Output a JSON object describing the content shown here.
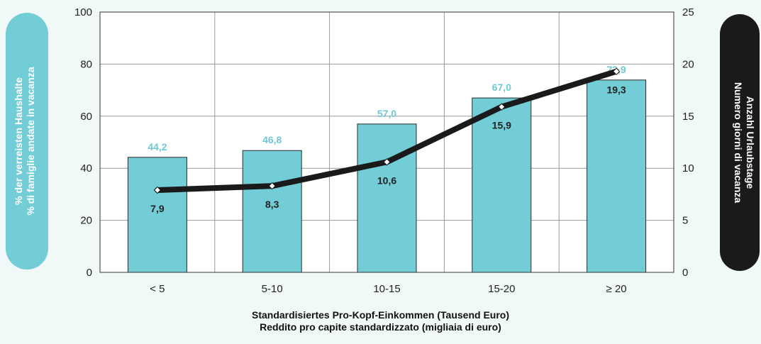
{
  "chart_data": {
    "type": "bar",
    "categories": [
      "< 5",
      "5-10",
      "10-15",
      "15-20",
      "≥ 20"
    ],
    "series": [
      {
        "type": "bar",
        "axis": "left",
        "values": [
          44.2,
          46.8,
          57.0,
          67.0,
          73.9
        ],
        "labels": [
          "44,2",
          "46,8",
          "57,0",
          "67,0",
          "73,9"
        ],
        "color": "#72cdd6"
      },
      {
        "type": "line",
        "axis": "right",
        "values": [
          7.9,
          8.3,
          10.6,
          15.9,
          19.3
        ],
        "labels": [
          "7,9",
          "8,3",
          "10,6",
          "15,9",
          "19,3"
        ],
        "color": "#1a1a1a"
      }
    ],
    "ylabel_left": [
      "% der verreisten Haushalte",
      "% di famiglie andate in vacanza"
    ],
    "ylabel_right": [
      "Anzahl Urlaubstage",
      "Numero giorni di vacanza"
    ],
    "xlabel": [
      "Standardisiertes Pro-Kopf-Einkommen (Tausend Euro)",
      "Reddito pro capite standardizzato (migliaia di euro)"
    ],
    "ylim_left": [
      0,
      100
    ],
    "yticks_left": [
      "0",
      "20",
      "40",
      "60",
      "80",
      "100"
    ],
    "ylim_right": [
      0,
      25
    ],
    "yticks_right": [
      "0",
      "5",
      "10",
      "15",
      "20",
      "25"
    ],
    "grid": true,
    "colors": {
      "bar_fill": "#72cdd6",
      "bar_label": "#6ec9d2",
      "line": "#1a1a1a",
      "left_pill": "#72cdd6",
      "right_pill": "#1a1a1a"
    }
  }
}
